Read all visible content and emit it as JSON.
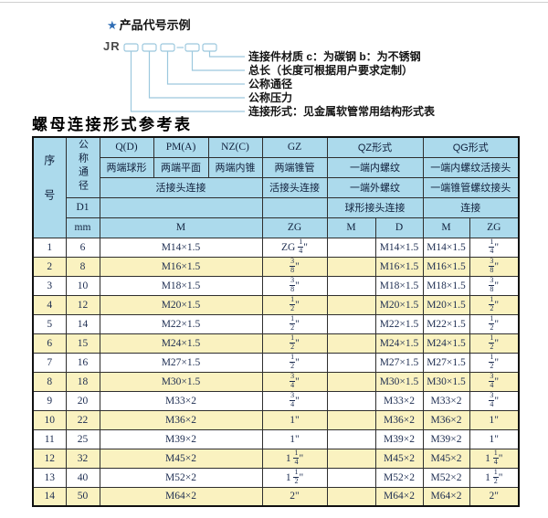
{
  "colors": {
    "header_bg": "#ACDAEC",
    "alt_row_bg": "#FAF2C0",
    "leader_line": "#9CC8DE",
    "star_accent": "#2F6DB5"
  },
  "diagram": {
    "star": "★",
    "heading": "产品代号示例",
    "prefix": "JR",
    "labels": [
      "连接件材质  c：为碳钢  b：为不锈钢",
      "总长（长度可根据用户要求定制）",
      "公称通径",
      "公称压力",
      "连接形式：见金属软管常用结构形式表"
    ]
  },
  "table": {
    "title": "螺母连接形式参考表",
    "header": {
      "seq": "序号",
      "dn": "公称通径",
      "d1": "D1",
      "mm": "mm",
      "q": "Q(D)",
      "pm": "PM(A)",
      "nz": "NZ(C)",
      "gz": "GZ",
      "qz": "QZ形式",
      "qg": "QG形式",
      "q_sub": "两端球形",
      "pm_sub": "两端平面",
      "nz_sub": "两端内锥",
      "gz_sub": "两端锥管",
      "qz_sub1": "一端内螺纹",
      "qg_sub1": "一端内螺纹活接头",
      "union_conn": "活接头连接",
      "gz_conn": "活接头连接",
      "qz_sub2": "一端外螺纹",
      "qg_sub2": "一端锥管螺纹接头",
      "qz_conn": "球形接头连接",
      "qg_conn": "连接",
      "m1": "M",
      "zg1": "ZG",
      "m2": "M",
      "d": "D",
      "m3": "M",
      "zg2": "ZG"
    },
    "rows": [
      {
        "no": "1",
        "dn": "6",
        "m": "M14×1.5",
        "zg": "ZG 1/4\"",
        "qz_m": "",
        "qz_d": "M14×1.5",
        "qg_m": "M14×1.5",
        "qg_zg": "1/4\""
      },
      {
        "no": "2",
        "dn": "8",
        "m": "M16×1.5",
        "zg": "3/8\"",
        "qz_m": "",
        "qz_d": "M16×1.5",
        "qg_m": "M16×1.5",
        "qg_zg": "3/8\""
      },
      {
        "no": "3",
        "dn": "10",
        "m": "M18×1.5",
        "zg": "3/8\"",
        "qz_m": "",
        "qz_d": "M18×1.5",
        "qg_m": "M18×1.5",
        "qg_zg": "3/8\""
      },
      {
        "no": "4",
        "dn": "12",
        "m": "M20×1.5",
        "zg": "1/2\"",
        "qz_m": "",
        "qz_d": "M20×1.5",
        "qg_m": "M20×1.5",
        "qg_zg": "1/2\""
      },
      {
        "no": "5",
        "dn": "14",
        "m": "M22×1.5",
        "zg": "1/2\"",
        "qz_m": "",
        "qz_d": "M22×1.5",
        "qg_m": "M22×1.5",
        "qg_zg": "1/2\""
      },
      {
        "no": "6",
        "dn": "15",
        "m": "M24×1.5",
        "zg": "1/2\"",
        "qz_m": "",
        "qz_d": "M24×1.5",
        "qg_m": "M24×1.5",
        "qg_zg": "1/2\""
      },
      {
        "no": "7",
        "dn": "16",
        "m": "M27×1.5",
        "zg": "1/2\"",
        "qz_m": "",
        "qz_d": "M27×1.5",
        "qg_m": "M27×1.5",
        "qg_zg": "1/2\""
      },
      {
        "no": "8",
        "dn": "18",
        "m": "M30×1.5",
        "zg": "3/4\"",
        "qz_m": "",
        "qz_d": "M30×1.5",
        "qg_m": "M30×1.5",
        "qg_zg": "3/4\""
      },
      {
        "no": "9",
        "dn": "20",
        "m": "M33×2",
        "zg": "3/4\"",
        "qz_m": "",
        "qz_d": "M33×2",
        "qg_m": "M33×2",
        "qg_zg": "3/4\""
      },
      {
        "no": "10",
        "dn": "22",
        "m": "M36×2",
        "zg": "1\"",
        "qz_m": "",
        "qz_d": "M36×2",
        "qg_m": "M36×2",
        "qg_zg": "1\""
      },
      {
        "no": "11",
        "dn": "25",
        "m": "M39×2",
        "zg": "1\"",
        "qz_m": "",
        "qz_d": "M39×2",
        "qg_m": "M39×2",
        "qg_zg": "1\""
      },
      {
        "no": "12",
        "dn": "32",
        "m": "M45×2",
        "zg": "1 1/4\"",
        "qz_m": "",
        "qz_d": "M45×2",
        "qg_m": "M45×2",
        "qg_zg": "1 1/4\""
      },
      {
        "no": "13",
        "dn": "40",
        "m": "M52×2",
        "zg": "1 1/2\"",
        "qz_m": "",
        "qz_d": "M52×2",
        "qg_m": "M52×2",
        "qg_zg": "1 1/2\""
      },
      {
        "no": "14",
        "dn": "50",
        "m": "M64×2",
        "zg": "2\"",
        "qz_m": "",
        "qz_d": "M64×2",
        "qg_m": "M64×2",
        "qg_zg": "2\""
      }
    ]
  }
}
